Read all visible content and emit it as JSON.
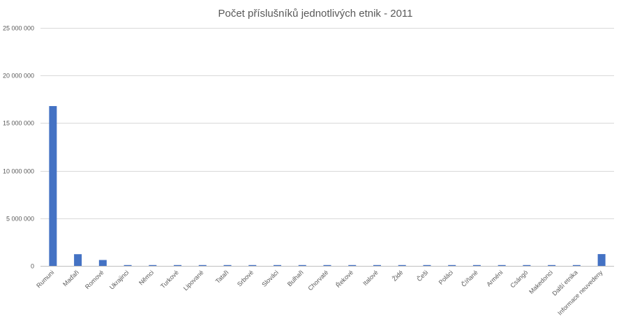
{
  "chart_data": {
    "type": "bar",
    "title": "Počet příslušníků jednotlivých etnik - 2011",
    "xlabel": "",
    "ylabel": "",
    "ylim": [
      0,
      25000000
    ],
    "yticks": [
      0,
      5000000,
      10000000,
      15000000,
      20000000,
      25000000
    ],
    "ytick_labels": [
      "0",
      "5 000 000",
      "10 000 000",
      "15 000 000",
      "20 000 000",
      "25 000 000"
    ],
    "grid": true,
    "legend": "none",
    "bar_color": "#4472c4",
    "categories": [
      "Rumuni",
      "Maďaři",
      "Romové",
      "Ukrajinci",
      "Němci",
      "Turkové",
      "Lipované",
      "Tataři",
      "Srbové",
      "Slováci",
      "Bulhaři",
      "Chorvaté",
      "Řekové",
      "Italové",
      "Židé",
      "Češi",
      "Poláci",
      "Číňané",
      "Arméni",
      "Csángó",
      "Makedonci",
      "Další etnika",
      "Informace neuvedeny"
    ],
    "values": [
      16790000,
      1230000,
      620000,
      51000,
      36000,
      27000,
      23000,
      20000,
      18000,
      13000,
      7000,
      5500,
      3700,
      3200,
      3300,
      2500,
      2500,
      2000,
      1400,
      1500,
      1300,
      18000,
      1240000
    ]
  }
}
